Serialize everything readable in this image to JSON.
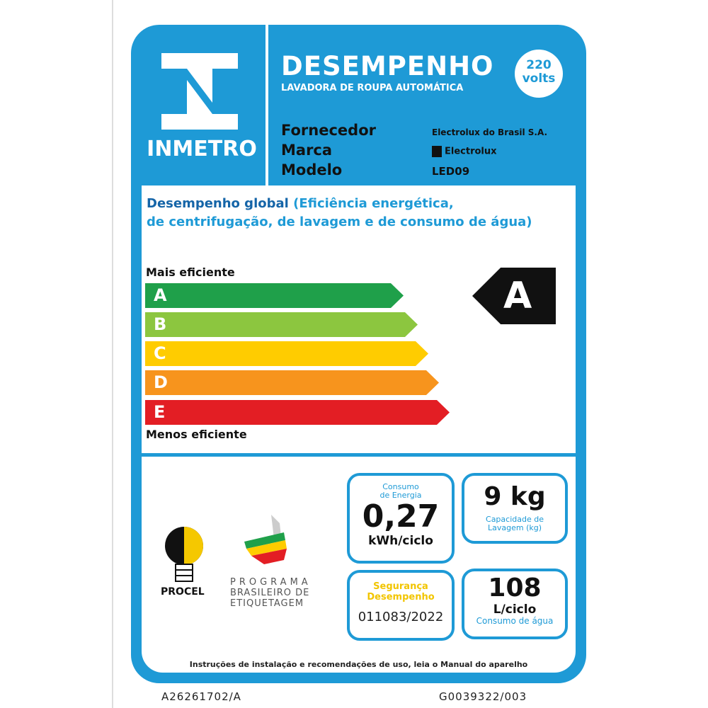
{
  "header": {
    "logo_text": "INMETRO",
    "title": "DESEMPENHO",
    "subtitle": "LAVADORA DE ROUPA AUTOMÁTICA",
    "voltage_value": "220",
    "voltage_unit": "volts"
  },
  "info": {
    "supplier_label": "Fornecedor",
    "supplier": "Electrolux do Brasil S.A.",
    "brand_label": "Marca",
    "brand": "Electrolux",
    "model_label": "Modelo",
    "model": "LED09"
  },
  "performance": {
    "title_strong": "Desempenho global",
    "title_rest": "(Eficiência energética,",
    "title_line2": "de centrifugação, de lavagem e de consumo de água)",
    "top_label": "Mais eficiente",
    "bottom_label": "Menos eficiente",
    "classes": [
      {
        "letter": "A",
        "color": "#1fa04a"
      },
      {
        "letter": "B",
        "color": "#8cc63f"
      },
      {
        "letter": "C",
        "color": "#ffcc00"
      },
      {
        "letter": "D",
        "color": "#f7941d"
      },
      {
        "letter": "E",
        "color": "#e31e24"
      }
    ],
    "rating": "A"
  },
  "energy": {
    "label": "Consumo de Energia",
    "value": "0,27",
    "unit": "kWh/ciclo"
  },
  "capacity": {
    "value": "9 kg",
    "label": "Capacidade de Lavagem (kg)"
  },
  "safety": {
    "label1": "Segurança",
    "label2": "Desempenho",
    "registration": "011083/2022"
  },
  "water": {
    "value": "108",
    "unit": "L/ciclo",
    "label": "Consumo de água"
  },
  "logos": {
    "procel": "PROCEL",
    "pbe_line1": "PROGRAMA",
    "pbe_line2": "BRASILEIRO DE",
    "pbe_line3": "ETIQUETAGEM"
  },
  "footer": {
    "instructions": "Instruções de instalação e recomendações de uso, leia o Manual do aparelho",
    "code_left": "A26261702/A",
    "code_right": "G0039322/003"
  }
}
